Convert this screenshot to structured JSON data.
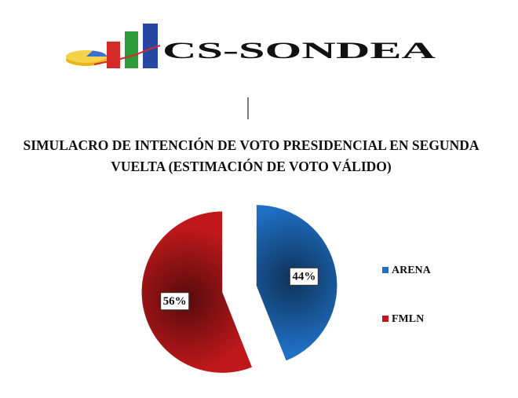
{
  "logo": {
    "text": "CS-SONDEA"
  },
  "chart_data": {
    "type": "pie",
    "title": "SIMULACRO DE INTENCIÓN DE VOTO PRESIDENCIAL EN SEGUNDA VUELTA (ESTIMACIÓN DE VOTO VÁLIDO)",
    "categories": [
      "ARENA",
      "FMLN"
    ],
    "values": [
      44,
      56
    ],
    "value_labels": [
      "44%",
      "56%"
    ],
    "colors": [
      "#1f6fc4",
      "#c0181a"
    ],
    "legend": "right"
  }
}
